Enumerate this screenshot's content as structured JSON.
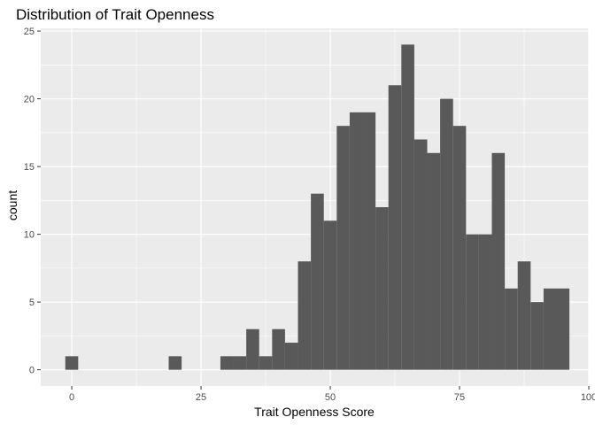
{
  "chart_data": {
    "type": "bar",
    "title": "Distribution of Trait Openness",
    "xlabel": "Trait Openness Score",
    "ylabel": "count",
    "xlim": [
      -6,
      100
    ],
    "ylim": [
      -1.2,
      25.2
    ],
    "x_ticks": [
      0,
      25,
      50,
      75,
      100
    ],
    "y_ticks": [
      0,
      5,
      10,
      15,
      20,
      25
    ],
    "bin_width": 2.5,
    "bins": [
      {
        "x0": -1.25,
        "x1": 1.25,
        "count": 1
      },
      {
        "x0": 18.75,
        "x1": 21.25,
        "count": 1
      },
      {
        "x0": 28.75,
        "x1": 31.25,
        "count": 1
      },
      {
        "x0": 31.25,
        "x1": 33.75,
        "count": 1
      },
      {
        "x0": 33.75,
        "x1": 36.25,
        "count": 3
      },
      {
        "x0": 36.25,
        "x1": 38.75,
        "count": 1
      },
      {
        "x0": 38.75,
        "x1": 41.25,
        "count": 3
      },
      {
        "x0": 41.25,
        "x1": 43.75,
        "count": 2
      },
      {
        "x0": 43.75,
        "x1": 46.25,
        "count": 8
      },
      {
        "x0": 46.25,
        "x1": 48.75,
        "count": 13
      },
      {
        "x0": 48.75,
        "x1": 51.25,
        "count": 11
      },
      {
        "x0": 51.25,
        "x1": 53.75,
        "count": 18
      },
      {
        "x0": 53.75,
        "x1": 56.25,
        "count": 19
      },
      {
        "x0": 56.25,
        "x1": 58.75,
        "count": 19
      },
      {
        "x0": 58.75,
        "x1": 61.25,
        "count": 12
      },
      {
        "x0": 61.25,
        "x1": 63.75,
        "count": 21
      },
      {
        "x0": 63.75,
        "x1": 66.25,
        "count": 24
      },
      {
        "x0": 66.25,
        "x1": 68.75,
        "count": 17
      },
      {
        "x0": 68.75,
        "x1": 71.25,
        "count": 16
      },
      {
        "x0": 71.25,
        "x1": 73.75,
        "count": 20
      },
      {
        "x0": 73.75,
        "x1": 76.25,
        "count": 18
      },
      {
        "x0": 76.25,
        "x1": 78.75,
        "count": 10
      },
      {
        "x0": 78.75,
        "x1": 81.25,
        "count": 10
      },
      {
        "x0": 81.25,
        "x1": 83.75,
        "count": 16
      },
      {
        "x0": 83.75,
        "x1": 86.25,
        "count": 6
      },
      {
        "x0": 86.25,
        "x1": 88.75,
        "count": 8
      },
      {
        "x0": 88.75,
        "x1": 91.25,
        "count": 5
      },
      {
        "x0": 91.25,
        "x1": 93.75,
        "count": 6
      },
      {
        "x0": 93.75,
        "x1": 96.25,
        "count": 6
      }
    ],
    "grid": true,
    "legend": "none",
    "colors": {
      "panel_background": "#EBEBEB",
      "grid_major": "#FFFFFF",
      "bar_fill": "#595959",
      "tick_mark": "#333333",
      "tick_label": "#4D4D4D"
    }
  }
}
